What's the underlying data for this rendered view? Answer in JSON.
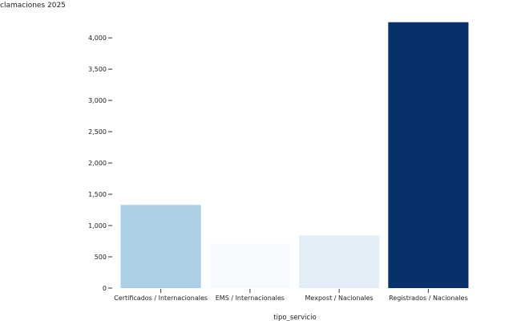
{
  "chart_data": {
    "type": "bar",
    "title": "clamaciones 2025",
    "xlabel": "tipo_servicio",
    "ylabel": "",
    "categories": [
      "Certificados / Internacionales",
      "EMS / Internacionales",
      "Mexpost / Nacionales",
      "Registrados / Nacionales"
    ],
    "values": [
      1330,
      710,
      840,
      4250
    ],
    "colors": [
      "#abcfe5",
      "#f6faff",
      "#e3eef9",
      "#08306b"
    ],
    "ylim": [
      0,
      4400
    ],
    "yticks": [
      0,
      500,
      1000,
      1500,
      2000,
      2500,
      3000,
      3500,
      4000
    ],
    "ytick_labels": [
      "0",
      "500",
      "1,000",
      "1,500",
      "2,000",
      "2,500",
      "3,000",
      "3,500",
      "4,000"
    ],
    "grid": false,
    "legend": "none"
  }
}
